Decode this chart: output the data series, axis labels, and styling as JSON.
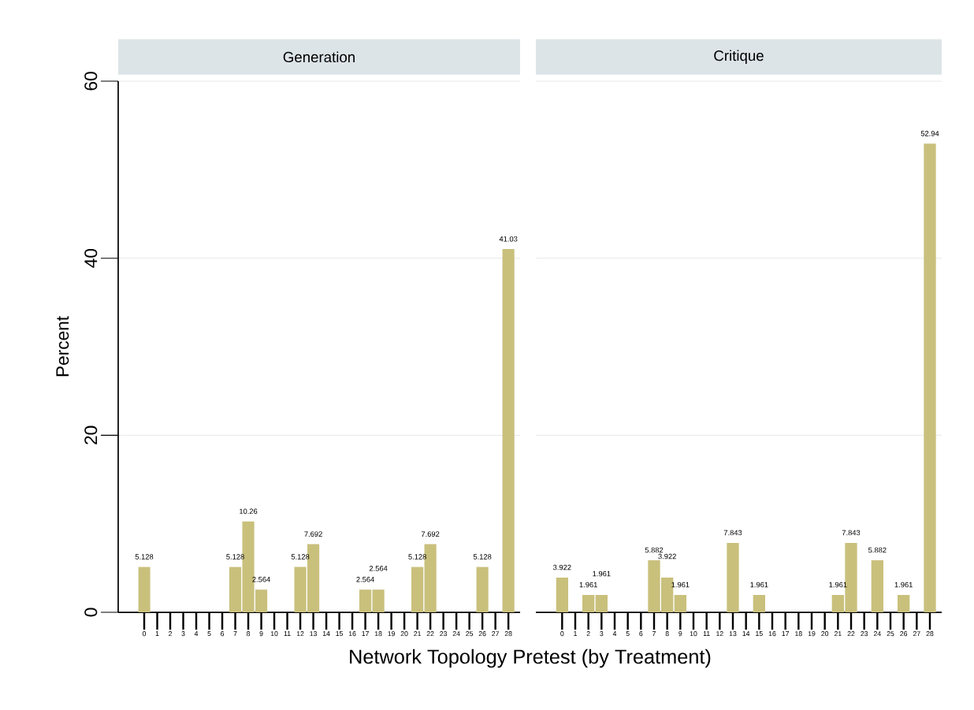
{
  "chart_data": [
    {
      "type": "bar",
      "title": "Generation",
      "xlabel": "Network Topology Pretest (by Treatment)",
      "ylabel": "Percent",
      "categories": [
        "0",
        "1",
        "2",
        "3",
        "4",
        "5",
        "6",
        "7",
        "8",
        "9",
        "10",
        "11",
        "12",
        "13",
        "14",
        "15",
        "16",
        "17",
        "18",
        "19",
        "20",
        "21",
        "22",
        "23",
        "24",
        "25",
        "26",
        "27",
        "28"
      ],
      "values": [
        5.128,
        null,
        null,
        null,
        null,
        null,
        null,
        5.128,
        10.26,
        2.564,
        null,
        null,
        5.128,
        7.692,
        null,
        null,
        null,
        2.564,
        2.564,
        null,
        null,
        5.128,
        7.692,
        null,
        null,
        null,
        5.128,
        null,
        41.03
      ],
      "value_labels": [
        "5.128",
        null,
        null,
        null,
        null,
        null,
        null,
        "5.128",
        "10.26",
        "2.564",
        null,
        null,
        "5.128",
        "7.692",
        null,
        null,
        null,
        "2.564",
        "2.564",
        null,
        null,
        "5.128",
        "7.692",
        null,
        null,
        null,
        "5.128",
        null,
        "41.03"
      ],
      "color": "#c9c07c",
      "ylim": [
        0,
        60
      ],
      "yticks": [
        0,
        20,
        40,
        60
      ],
      "grid": "y"
    },
    {
      "type": "bar",
      "title": "Critique",
      "categories": [
        "0",
        "1",
        "2",
        "3",
        "4",
        "5",
        "6",
        "7",
        "8",
        "9",
        "10",
        "11",
        "12",
        "13",
        "14",
        "15",
        "16",
        "17",
        "18",
        "19",
        "20",
        "21",
        "22",
        "23",
        "24",
        "25",
        "26",
        "27",
        "28"
      ],
      "values": [
        3.922,
        null,
        1.961,
        1.961,
        null,
        null,
        null,
        5.882,
        3.922,
        1.961,
        null,
        null,
        null,
        7.843,
        null,
        1.961,
        null,
        null,
        null,
        null,
        null,
        1.961,
        7.843,
        null,
        5.882,
        null,
        1.961,
        null,
        52.94
      ],
      "value_labels": [
        "3.922",
        null,
        "1.961",
        "1.961",
        null,
        null,
        null,
        "5.882",
        "3.922",
        "1.961",
        null,
        null,
        null,
        "7.843",
        null,
        "1.961",
        null,
        null,
        null,
        null,
        null,
        "1.961",
        "7.843",
        null,
        "5.882",
        null,
        "1.961",
        null,
        "52.94"
      ],
      "color": "#c9c07c",
      "ylim": [
        0,
        60
      ],
      "yticks": [
        0,
        20,
        40,
        60
      ],
      "grid": "y",
      "tick_labels": "x"
    }
  ]
}
